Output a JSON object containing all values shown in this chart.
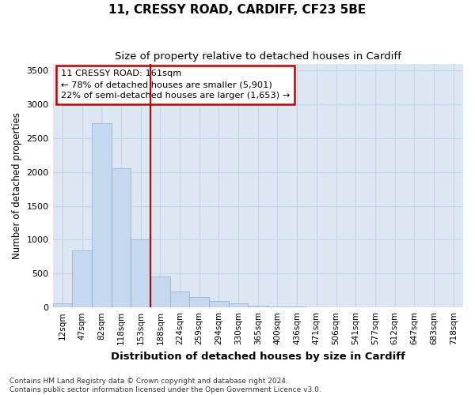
{
  "title1": "11, CRESSY ROAD, CARDIFF, CF23 5BE",
  "title2": "Size of property relative to detached houses in Cardiff",
  "xlabel": "Distribution of detached houses by size in Cardiff",
  "ylabel": "Number of detached properties",
  "bar_labels": [
    "12sqm",
    "47sqm",
    "82sqm",
    "118sqm",
    "153sqm",
    "188sqm",
    "224sqm",
    "259sqm",
    "294sqm",
    "330sqm",
    "365sqm",
    "400sqm",
    "436sqm",
    "471sqm",
    "506sqm",
    "541sqm",
    "577sqm",
    "612sqm",
    "647sqm",
    "683sqm",
    "718sqm"
  ],
  "bar_values": [
    55,
    840,
    2720,
    2060,
    1010,
    460,
    230,
    155,
    90,
    55,
    30,
    15,
    10,
    5,
    2,
    1,
    1,
    0,
    0,
    0,
    0
  ],
  "bar_color": "#c5d8ee",
  "bar_edge_color": "#8aafd4",
  "vline_x": 4.5,
  "vline_color": "#c00000",
  "annotation_title": "11 CRESSY ROAD: 161sqm",
  "annotation_line1": "← 78% of detached houses are smaller (5,901)",
  "annotation_line2": "22% of semi-detached houses are larger (1,653) →",
  "annotation_box_color": "#ffffff",
  "annotation_box_edge": "#c00000",
  "ylim": [
    0,
    3600
  ],
  "yticks": [
    0,
    500,
    1000,
    1500,
    2000,
    2500,
    3000,
    3500
  ],
  "grid_color": "#c8d4e8",
  "background_color": "#dde6f3",
  "fig_background": "#ffffff",
  "footer1": "Contains HM Land Registry data © Crown copyright and database right 2024.",
  "footer2": "Contains public sector information licensed under the Open Government Licence v3.0."
}
